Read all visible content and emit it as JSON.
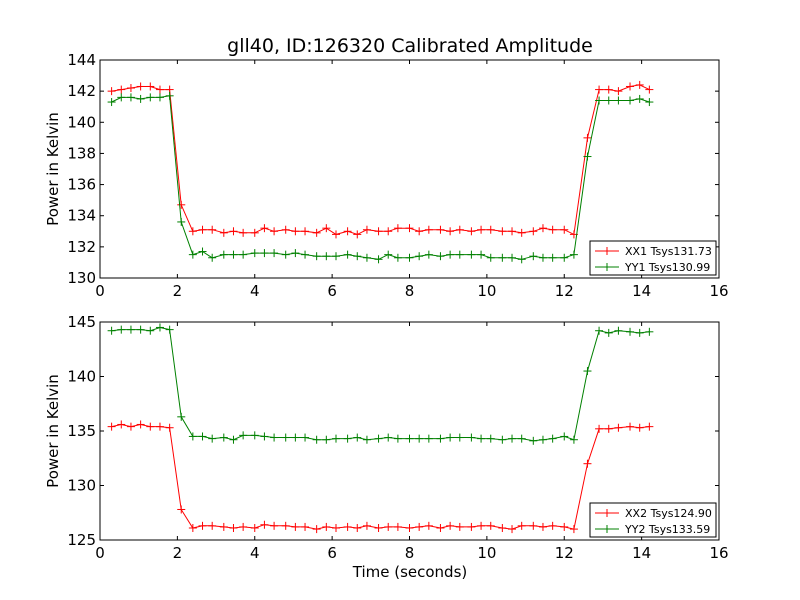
{
  "title": "gll40, ID:126320 Calibrated Amplitude",
  "xlabel": "Time (seconds)",
  "colors": {
    "xx": "#ff0000",
    "yy": "#008000"
  },
  "chart_data": [
    {
      "type": "line",
      "ylabel": "Power in Kelvin",
      "xlim": [
        0,
        16
      ],
      "ylim": [
        130,
        144
      ],
      "xticks": [
        0,
        2,
        4,
        6,
        8,
        10,
        12,
        14,
        16
      ],
      "yticks": [
        130,
        132,
        134,
        136,
        138,
        140,
        142,
        144
      ],
      "legend_position": "lower-right",
      "x": [
        0.3,
        0.55,
        0.8,
        1.05,
        1.3,
        1.55,
        1.8,
        2.1,
        2.4,
        2.65,
        2.9,
        3.2,
        3.45,
        3.7,
        4.0,
        4.25,
        4.5,
        4.8,
        5.05,
        5.3,
        5.6,
        5.85,
        6.1,
        6.4,
        6.65,
        6.9,
        7.2,
        7.45,
        7.7,
        8.0,
        8.25,
        8.5,
        8.8,
        9.05,
        9.3,
        9.6,
        9.85,
        10.1,
        10.4,
        10.65,
        10.9,
        11.2,
        11.45,
        11.7,
        12.0,
        12.25,
        12.6,
        12.9,
        13.15,
        13.4,
        13.7,
        13.95,
        14.2
      ],
      "series": [
        {
          "name": "XX1 Tsys131.73",
          "color": "#ff0000",
          "values": [
            142.0,
            142.1,
            142.2,
            142.3,
            142.3,
            142.1,
            142.1,
            134.7,
            133.0,
            133.1,
            133.1,
            132.9,
            133.0,
            132.9,
            132.9,
            133.2,
            133.0,
            133.1,
            133.0,
            133.0,
            132.9,
            133.2,
            132.8,
            133.0,
            132.8,
            133.1,
            133.0,
            133.0,
            133.2,
            133.2,
            133.0,
            133.1,
            133.1,
            133.0,
            133.1,
            133.0,
            133.1,
            133.1,
            133.0,
            133.0,
            132.9,
            133.0,
            133.2,
            133.1,
            133.1,
            132.8,
            139.0,
            142.1,
            142.1,
            142.0,
            142.3,
            142.4,
            142.1
          ]
        },
        {
          "name": "YY1 Tsys130.99",
          "color": "#008000",
          "values": [
            141.3,
            141.6,
            141.6,
            141.5,
            141.6,
            141.6,
            141.7,
            133.6,
            131.5,
            131.7,
            131.3,
            131.5,
            131.5,
            131.5,
            131.6,
            131.6,
            131.6,
            131.5,
            131.6,
            131.5,
            131.4,
            131.4,
            131.4,
            131.5,
            131.4,
            131.3,
            131.2,
            131.5,
            131.3,
            131.3,
            131.4,
            131.5,
            131.4,
            131.5,
            131.5,
            131.5,
            131.5,
            131.3,
            131.3,
            131.3,
            131.2,
            131.4,
            131.3,
            131.3,
            131.3,
            131.5,
            137.8,
            141.4,
            141.4,
            141.4,
            141.4,
            141.5,
            141.3
          ]
        }
      ]
    },
    {
      "type": "line",
      "ylabel": "Power in Kelvin",
      "xlabel": "Time (seconds)",
      "xlim": [
        0,
        16
      ],
      "ylim": [
        125,
        145
      ],
      "xticks": [
        0,
        2,
        4,
        6,
        8,
        10,
        12,
        14,
        16
      ],
      "yticks": [
        125,
        130,
        135,
        140,
        145
      ],
      "legend_position": "lower-right",
      "x": [
        0.3,
        0.55,
        0.8,
        1.05,
        1.3,
        1.55,
        1.8,
        2.1,
        2.4,
        2.65,
        2.9,
        3.2,
        3.45,
        3.7,
        4.0,
        4.25,
        4.5,
        4.8,
        5.05,
        5.3,
        5.6,
        5.85,
        6.1,
        6.4,
        6.65,
        6.9,
        7.2,
        7.45,
        7.7,
        8.0,
        8.25,
        8.5,
        8.8,
        9.05,
        9.3,
        9.6,
        9.85,
        10.1,
        10.4,
        10.65,
        10.9,
        11.2,
        11.45,
        11.7,
        12.0,
        12.25,
        12.6,
        12.9,
        13.15,
        13.4,
        13.7,
        13.95,
        14.2
      ],
      "series": [
        {
          "name": "XX2 Tsys124.90",
          "color": "#ff0000",
          "values": [
            135.4,
            135.6,
            135.4,
            135.6,
            135.4,
            135.4,
            135.3,
            127.8,
            126.1,
            126.3,
            126.3,
            126.2,
            126.1,
            126.2,
            126.1,
            126.4,
            126.3,
            126.3,
            126.2,
            126.2,
            126.0,
            126.2,
            126.1,
            126.2,
            126.1,
            126.3,
            126.1,
            126.2,
            126.2,
            126.1,
            126.2,
            126.3,
            126.1,
            126.3,
            126.2,
            126.2,
            126.3,
            126.3,
            126.1,
            126.0,
            126.3,
            126.3,
            126.2,
            126.3,
            126.2,
            126.0,
            132.0,
            135.2,
            135.2,
            135.3,
            135.4,
            135.3,
            135.4
          ]
        },
        {
          "name": "YY2 Tsys133.59",
          "color": "#008000",
          "values": [
            144.2,
            144.3,
            144.3,
            144.3,
            144.2,
            144.5,
            144.3,
            136.3,
            134.5,
            134.5,
            134.3,
            134.4,
            134.2,
            134.6,
            134.6,
            134.5,
            134.4,
            134.4,
            134.4,
            134.4,
            134.2,
            134.2,
            134.3,
            134.3,
            134.4,
            134.2,
            134.3,
            134.4,
            134.3,
            134.3,
            134.3,
            134.3,
            134.3,
            134.4,
            134.4,
            134.4,
            134.3,
            134.3,
            134.2,
            134.3,
            134.3,
            134.1,
            134.2,
            134.3,
            134.5,
            134.2,
            140.5,
            144.2,
            144.0,
            144.2,
            144.1,
            144.0,
            144.1
          ]
        }
      ]
    }
  ]
}
